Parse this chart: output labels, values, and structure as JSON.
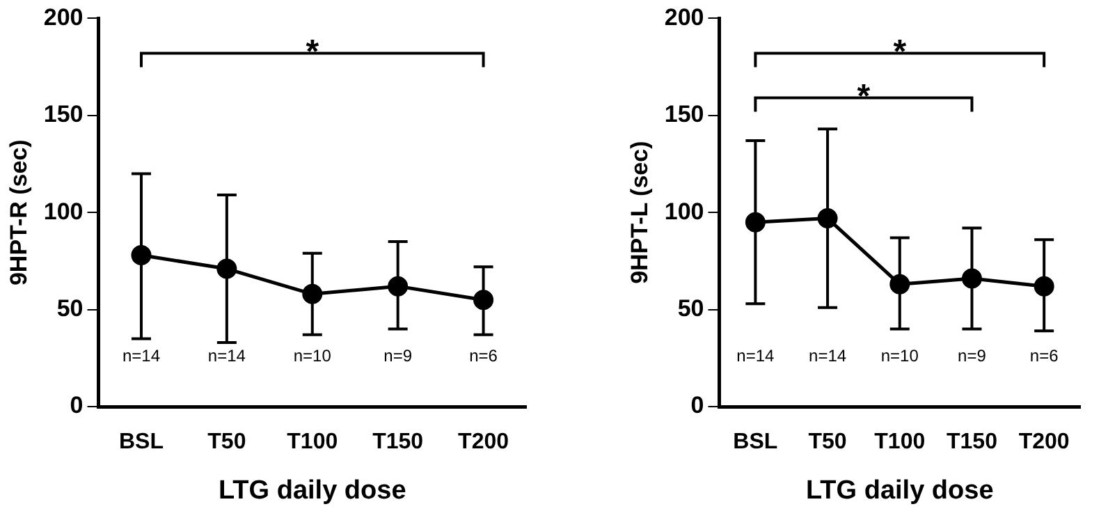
{
  "chart_data": [
    {
      "type": "line",
      "xlabel": "LTG daily dose",
      "ylabel": "9HPT-R (sec)",
      "categories": [
        "BSL",
        "T50",
        "T100",
        "T150",
        "T200"
      ],
      "series": [
        {
          "color": "#000000",
          "values": [
            78,
            71,
            58,
            62,
            55
          ],
          "errors": [
            [
              35,
              120
            ],
            [
              33,
              109
            ],
            [
              37,
              79
            ],
            [
              40,
              85
            ],
            [
              37,
              72
            ]
          ]
        }
      ],
      "ylim": [
        0,
        200
      ],
      "yticks": [
        0,
        50,
        100,
        150,
        200
      ],
      "grid": false,
      "legend": false,
      "marker": "circle",
      "line_style": "solid",
      "annotations": [
        "n=14",
        "n=14",
        "n=10",
        "n=9",
        "n=6",
        "*"
      ]
    },
    {
      "type": "line",
      "xlabel": "LTG daily dose",
      "ylabel": "9HPT-L (sec)",
      "categories": [
        "BSL",
        "T50",
        "T100",
        "T150",
        "T200"
      ],
      "series": [
        {
          "color": "#000000",
          "values": [
            95,
            97,
            63,
            66,
            62
          ],
          "errors": [
            [
              53,
              137
            ],
            [
              51,
              143
            ],
            [
              40,
              87
            ],
            [
              40,
              92
            ],
            [
              39,
              86
            ]
          ]
        }
      ],
      "ylim": [
        0,
        200
      ],
      "yticks": [
        0,
        50,
        100,
        150,
        200
      ],
      "grid": false,
      "legend": false,
      "marker": "circle",
      "line_style": "solid",
      "annotations": [
        "n=14",
        "n=14",
        "n=10",
        "n=9",
        "n=6",
        "*",
        "*"
      ]
    }
  ]
}
